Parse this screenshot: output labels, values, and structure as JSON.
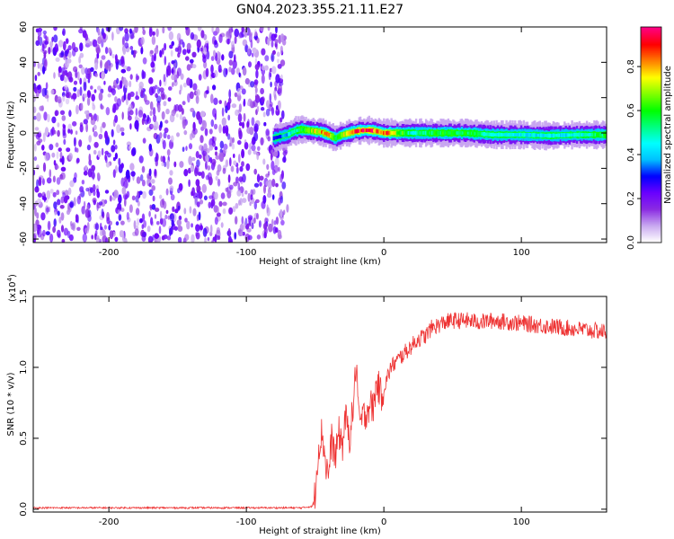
{
  "title": "GN04.2023.355.21.11.E27",
  "chart_data": [
    {
      "type": "heatmap",
      "xlabel": "Height of straight line (km)",
      "ylabel": "Frequency (Hz)",
      "xlim": [
        -255,
        162
      ],
      "ylim": [
        -62,
        60
      ],
      "xticks": [
        -200,
        -100,
        0,
        100
      ],
      "yticks": [
        60,
        40,
        20,
        0,
        -20,
        -40,
        -60
      ],
      "noise_region_x": [
        -255,
        -72
      ],
      "ridge": {
        "x": [
          -80,
          -75,
          -70,
          -65,
          -60,
          -55,
          -50,
          -45,
          -40,
          -35,
          -30,
          -25,
          -20,
          -15,
          -10,
          -5,
          0,
          10,
          20,
          40,
          60,
          80,
          100,
          120,
          140,
          162
        ],
        "freq": [
          -3,
          -2,
          -1,
          1,
          2,
          1.5,
          1,
          0.5,
          -1,
          -3,
          -1,
          0,
          1,
          1.5,
          1.5,
          1,
          0,
          0,
          0,
          0,
          0,
          -1,
          -1,
          -1.5,
          -1,
          -1
        ],
        "amplitude": [
          0.3,
          0.35,
          0.4,
          0.5,
          0.6,
          0.7,
          0.75,
          0.85,
          0.8,
          0.65,
          0.75,
          0.85,
          0.9,
          0.95,
          0.95,
          0.9,
          0.95,
          0.7,
          0.5,
          0.6,
          0.6,
          0.5,
          0.45,
          0.45,
          0.45,
          0.6
        ]
      },
      "colorbar": {
        "label": "Normalized spectral amplitude",
        "ticks": [
          "0.0",
          "0.2",
          "0.4",
          "0.6",
          "0.8"
        ],
        "tick_values": [
          0.0,
          0.2,
          0.4,
          0.6,
          0.8
        ],
        "range": [
          0,
          0.98
        ],
        "colors": [
          "#ffffff",
          "#c8a8f0",
          "#8a2be2",
          "#6a00ff",
          "#0000ff",
          "#00bfff",
          "#00ffff",
          "#00ff80",
          "#00ff00",
          "#80ff00",
          "#ffff00",
          "#ff8000",
          "#ff0000",
          "#ff007f"
        ]
      }
    },
    {
      "type": "line",
      "xlabel": "Height of straight line (km)",
      "ylabel": "SNR (10 * v/v)",
      "multiplier": "(x10",
      "multiplier_exp": "4",
      "multiplier_close": ")",
      "xlim": [
        -255,
        162
      ],
      "ylim": [
        -0.02,
        1.5
      ],
      "xticks": [
        -200,
        -100,
        0,
        100
      ],
      "yticks": [
        "0.0",
        "0.5",
        "1.0",
        "1.5"
      ],
      "ytick_values": [
        0.0,
        0.5,
        1.0,
        1.5
      ],
      "series": [
        {
          "color": "#ee3333",
          "x": [
            -255,
            -200,
            -150,
            -100,
            -60,
            -52,
            -50,
            -48,
            -45,
            -42,
            -40,
            -38,
            -35,
            -33,
            -30,
            -28,
            -25,
            -22,
            -20,
            -18,
            -15,
            -12,
            -10,
            -8,
            -5,
            -2,
            0,
            5,
            10,
            15,
            20,
            25,
            30,
            35,
            40,
            45,
            50,
            60,
            70,
            80,
            90,
            100,
            110,
            120,
            130,
            140,
            150,
            162
          ],
          "y": [
            0.01,
            0.01,
            0.01,
            0.01,
            0.01,
            0.02,
            0.1,
            0.4,
            0.55,
            0.3,
            0.25,
            0.5,
            0.35,
            0.55,
            0.45,
            0.65,
            0.5,
            0.75,
            1.05,
            0.6,
            0.65,
            0.7,
            0.75,
            0.7,
            0.9,
            0.8,
            0.85,
            1.0,
            1.05,
            1.1,
            1.15,
            1.2,
            1.22,
            1.28,
            1.3,
            1.32,
            1.33,
            1.33,
            1.32,
            1.33,
            1.32,
            1.31,
            1.3,
            1.29,
            1.28,
            1.27,
            1.26,
            1.25
          ]
        }
      ]
    }
  ]
}
